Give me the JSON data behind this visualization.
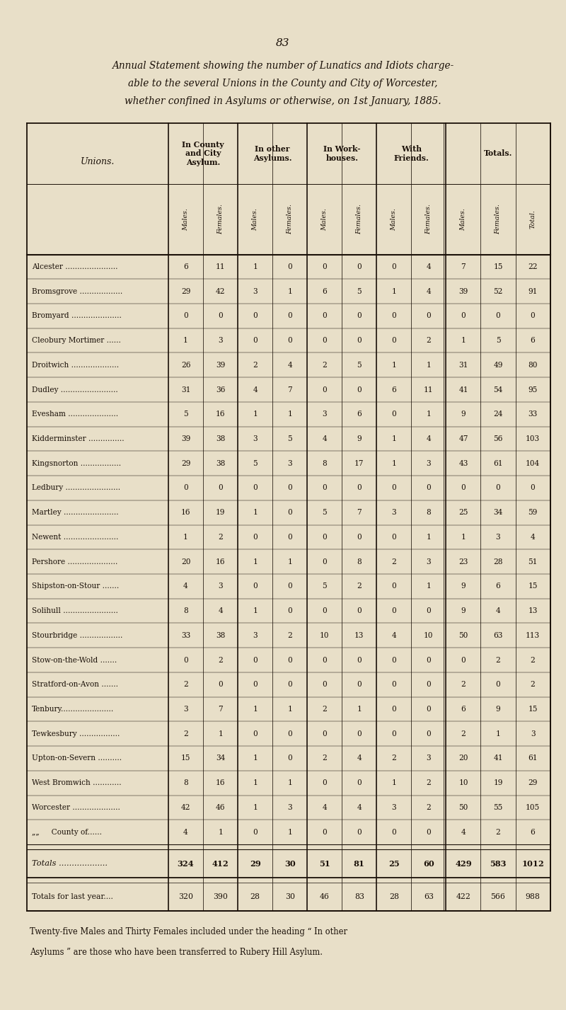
{
  "page_number": "83",
  "title_line1": "Annual Statement showing the number of Lunatics and Idiots charge-",
  "title_line2": "able to the several Unions in the County and City of Worcester,",
  "title_line3": "whether confined in Asylums or otherwise, on 1st January, 1885.",
  "sub_cols": [
    "Males.",
    "Females.",
    "Males.",
    "Females.",
    "Males.",
    "Females.",
    "Males.",
    "Females.",
    "Males.",
    "Females.",
    "Total."
  ],
  "unions_label": "Unions.",
  "rows": [
    {
      "name": "Alcester ......................",
      "vals": [
        6,
        11,
        1,
        0,
        0,
        0,
        0,
        4,
        7,
        15,
        22
      ]
    },
    {
      "name": "Bromsgrove ..................",
      "vals": [
        29,
        42,
        3,
        1,
        6,
        5,
        1,
        4,
        39,
        52,
        91
      ]
    },
    {
      "name": "Bromyard .....................",
      "vals": [
        0,
        0,
        0,
        0,
        0,
        0,
        0,
        0,
        0,
        0,
        0
      ]
    },
    {
      "name": "Cleobury Mortimer ......",
      "vals": [
        1,
        3,
        0,
        0,
        0,
        0,
        0,
        2,
        1,
        5,
        6
      ]
    },
    {
      "name": "Droitwich ....................",
      "vals": [
        26,
        39,
        2,
        4,
        2,
        5,
        1,
        1,
        31,
        49,
        80
      ]
    },
    {
      "name": "Dudley ........................",
      "vals": [
        31,
        36,
        4,
        7,
        0,
        0,
        6,
        11,
        41,
        54,
        95
      ]
    },
    {
      "name": "Evesham .....................",
      "vals": [
        5,
        16,
        1,
        1,
        3,
        6,
        0,
        1,
        9,
        24,
        33
      ]
    },
    {
      "name": "Kidderminster ...............",
      "vals": [
        39,
        38,
        3,
        5,
        4,
        9,
        1,
        4,
        47,
        56,
        103
      ]
    },
    {
      "name": "Kingsnorton .................",
      "vals": [
        29,
        38,
        5,
        3,
        8,
        17,
        1,
        3,
        43,
        61,
        104
      ]
    },
    {
      "name": "Ledbury .......................",
      "vals": [
        0,
        0,
        0,
        0,
        0,
        0,
        0,
        0,
        0,
        0,
        0
      ]
    },
    {
      "name": "Martley .......................",
      "vals": [
        16,
        19,
        1,
        0,
        5,
        7,
        3,
        8,
        25,
        34,
        59
      ]
    },
    {
      "name": "Newent .......................",
      "vals": [
        1,
        2,
        0,
        0,
        0,
        0,
        0,
        1,
        1,
        3,
        4
      ]
    },
    {
      "name": "Pershore .....................",
      "vals": [
        20,
        16,
        1,
        1,
        0,
        8,
        2,
        3,
        23,
        28,
        51
      ]
    },
    {
      "name": "Shipston-on-Stour .......",
      "vals": [
        4,
        3,
        0,
        0,
        5,
        2,
        0,
        1,
        9,
        6,
        15
      ]
    },
    {
      "name": "Solihull .......................",
      "vals": [
        8,
        4,
        1,
        0,
        0,
        0,
        0,
        0,
        9,
        4,
        13
      ]
    },
    {
      "name": "Stourbridge ..................",
      "vals": [
        33,
        38,
        3,
        2,
        10,
        13,
        4,
        10,
        50,
        63,
        113
      ]
    },
    {
      "name": "Stow-on-the-Wold .......",
      "vals": [
        0,
        2,
        0,
        0,
        0,
        0,
        0,
        0,
        0,
        2,
        2
      ]
    },
    {
      "name": "Stratford-on-Avon .......",
      "vals": [
        2,
        0,
        0,
        0,
        0,
        0,
        0,
        0,
        2,
        0,
        2
      ]
    },
    {
      "name": "Tenbury......................",
      "vals": [
        3,
        7,
        1,
        1,
        2,
        1,
        0,
        0,
        6,
        9,
        15
      ]
    },
    {
      "name": "Tewkesbury .................",
      "vals": [
        2,
        1,
        0,
        0,
        0,
        0,
        0,
        0,
        2,
        1,
        3
      ]
    },
    {
      "name": "Upton-on-Severn ..........",
      "vals": [
        15,
        34,
        1,
        0,
        2,
        4,
        2,
        3,
        20,
        41,
        61
      ]
    },
    {
      "name": "West Bromwich ............",
      "vals": [
        8,
        16,
        1,
        1,
        0,
        0,
        1,
        2,
        10,
        19,
        29
      ]
    },
    {
      "name": "Worcester ....................",
      "vals": [
        42,
        46,
        1,
        3,
        4,
        4,
        3,
        2,
        50,
        55,
        105
      ]
    },
    {
      "name": "„„     County of......",
      "vals": [
        4,
        1,
        0,
        1,
        0,
        0,
        0,
        0,
        4,
        2,
        6
      ]
    }
  ],
  "totals_row": {
    "name": "Totals ...................",
    "vals": [
      324,
      412,
      29,
      30,
      51,
      81,
      25,
      60,
      429,
      583,
      1012
    ]
  },
  "last_year_row": {
    "name": "Totals for last year....",
    "vals": [
      320,
      390,
      28,
      30,
      46,
      83,
      28,
      63,
      422,
      566,
      988
    ]
  },
  "footnote_line1": "Twenty-five Males and Thirty Females included under the heading “ In other",
  "footnote_line2": "Asylums ” are those who have been transferred to Rubery Hill Asylum.",
  "bg_color": "#e8dfc8",
  "text_color": "#1a1008"
}
